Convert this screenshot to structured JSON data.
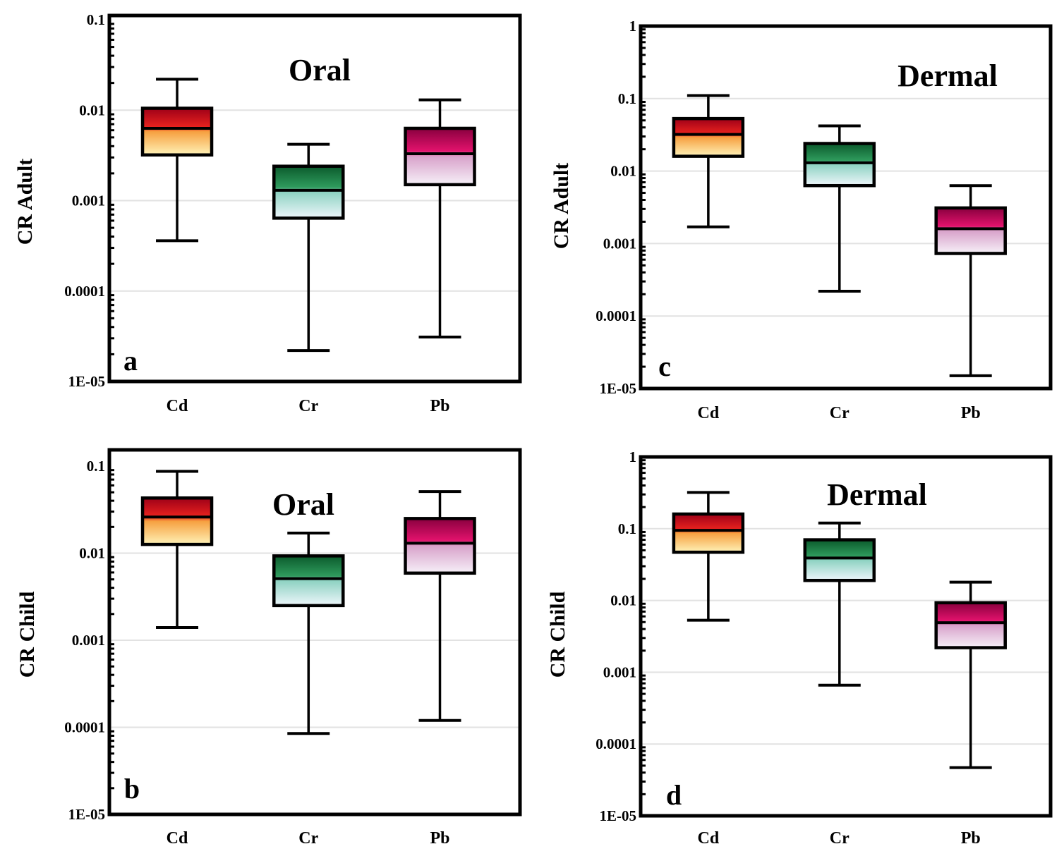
{
  "chart_data": [
    {
      "type": "box",
      "panel_letter": "a",
      "title": "Oral",
      "ylabel": "CR Adult",
      "yscale": "log",
      "ylim": [
        1e-05,
        0.1
      ],
      "yticks": [
        "1E-05",
        "0.0001",
        "0.001",
        "0.01",
        "0.1"
      ],
      "grid": true,
      "categories": [
        "Cd",
        "Cr",
        "Pb"
      ],
      "boxes": [
        {
          "min": 0.00036,
          "q1": 0.0032,
          "median": 0.0063,
          "q3": 0.0105,
          "max": 0.022
        },
        {
          "min": 2.2e-05,
          "q1": 0.00064,
          "median": 0.0013,
          "q3": 0.0024,
          "max": 0.0042
        },
        {
          "min": 3.1e-05,
          "q1": 0.0015,
          "median": 0.0033,
          "q3": 0.0063,
          "max": 0.013
        }
      ]
    },
    {
      "type": "box",
      "panel_letter": "b",
      "title": "Oral",
      "ylabel": "CR Child",
      "yscale": "log",
      "ylim": [
        1e-05,
        0.1
      ],
      "yticks": [
        "1E-05",
        "0.0001",
        "0.001",
        "0.01",
        "0.1"
      ],
      "grid": true,
      "categories": [
        "Cd",
        "Cr",
        "Pb"
      ],
      "boxes": [
        {
          "min": 0.0014,
          "q1": 0.0126,
          "median": 0.026,
          "q3": 0.043,
          "max": 0.087
        },
        {
          "min": 8.5e-05,
          "q1": 0.0025,
          "median": 0.0051,
          "q3": 0.0093,
          "max": 0.017
        },
        {
          "min": 0.00012,
          "q1": 0.0059,
          "median": 0.013,
          "q3": 0.025,
          "max": 0.051
        }
      ]
    },
    {
      "type": "box",
      "panel_letter": "c",
      "title": "Dermal",
      "ylabel": "CR Adult",
      "yscale": "log",
      "ylim": [
        1e-05,
        1
      ],
      "yticks": [
        "1E-05",
        "0.0001",
        "0.001",
        "0.01",
        "0.1",
        "1"
      ],
      "grid": true,
      "categories": [
        "Cd",
        "Cr",
        "Pb"
      ],
      "boxes": [
        {
          "min": 0.0017,
          "q1": 0.016,
          "median": 0.032,
          "q3": 0.053,
          "max": 0.11
        },
        {
          "min": 0.00022,
          "q1": 0.0063,
          "median": 0.013,
          "q3": 0.024,
          "max": 0.042
        },
        {
          "min": 1.5e-05,
          "q1": 0.00073,
          "median": 0.0016,
          "q3": 0.0031,
          "max": 0.0063
        }
      ]
    },
    {
      "type": "box",
      "panel_letter": "d",
      "title": "Dermal",
      "ylabel": "CR Child",
      "yscale": "log",
      "ylim": [
        1e-05,
        1
      ],
      "yticks": [
        "1E-05",
        "0.0001",
        "0.001",
        "0.01",
        "0.1",
        "1"
      ],
      "grid": true,
      "categories": [
        "Cd",
        "Cr",
        "Pb"
      ],
      "boxes": [
        {
          "min": 0.0053,
          "q1": 0.047,
          "median": 0.095,
          "q3": 0.16,
          "max": 0.32
        },
        {
          "min": 0.00066,
          "q1": 0.019,
          "median": 0.039,
          "q3": 0.07,
          "max": 0.12
        },
        {
          "min": 4.7e-05,
          "q1": 0.0022,
          "median": 0.0049,
          "q3": 0.0093,
          "max": 0.018
        }
      ]
    }
  ],
  "colors": {
    "Cd": [
      "#9e0018",
      "#e8221e",
      "#f6a040",
      "#fff3b8"
    ],
    "Cr": [
      "#0b5a2c",
      "#2e9a5c",
      "#8ed2c2",
      "#eef6fb"
    ],
    "Pb": [
      "#88003e",
      "#e2126c",
      "#d8a2ca",
      "#f6f0f8"
    ],
    "grid": "#e2e2e2",
    "frame": "#000000"
  }
}
